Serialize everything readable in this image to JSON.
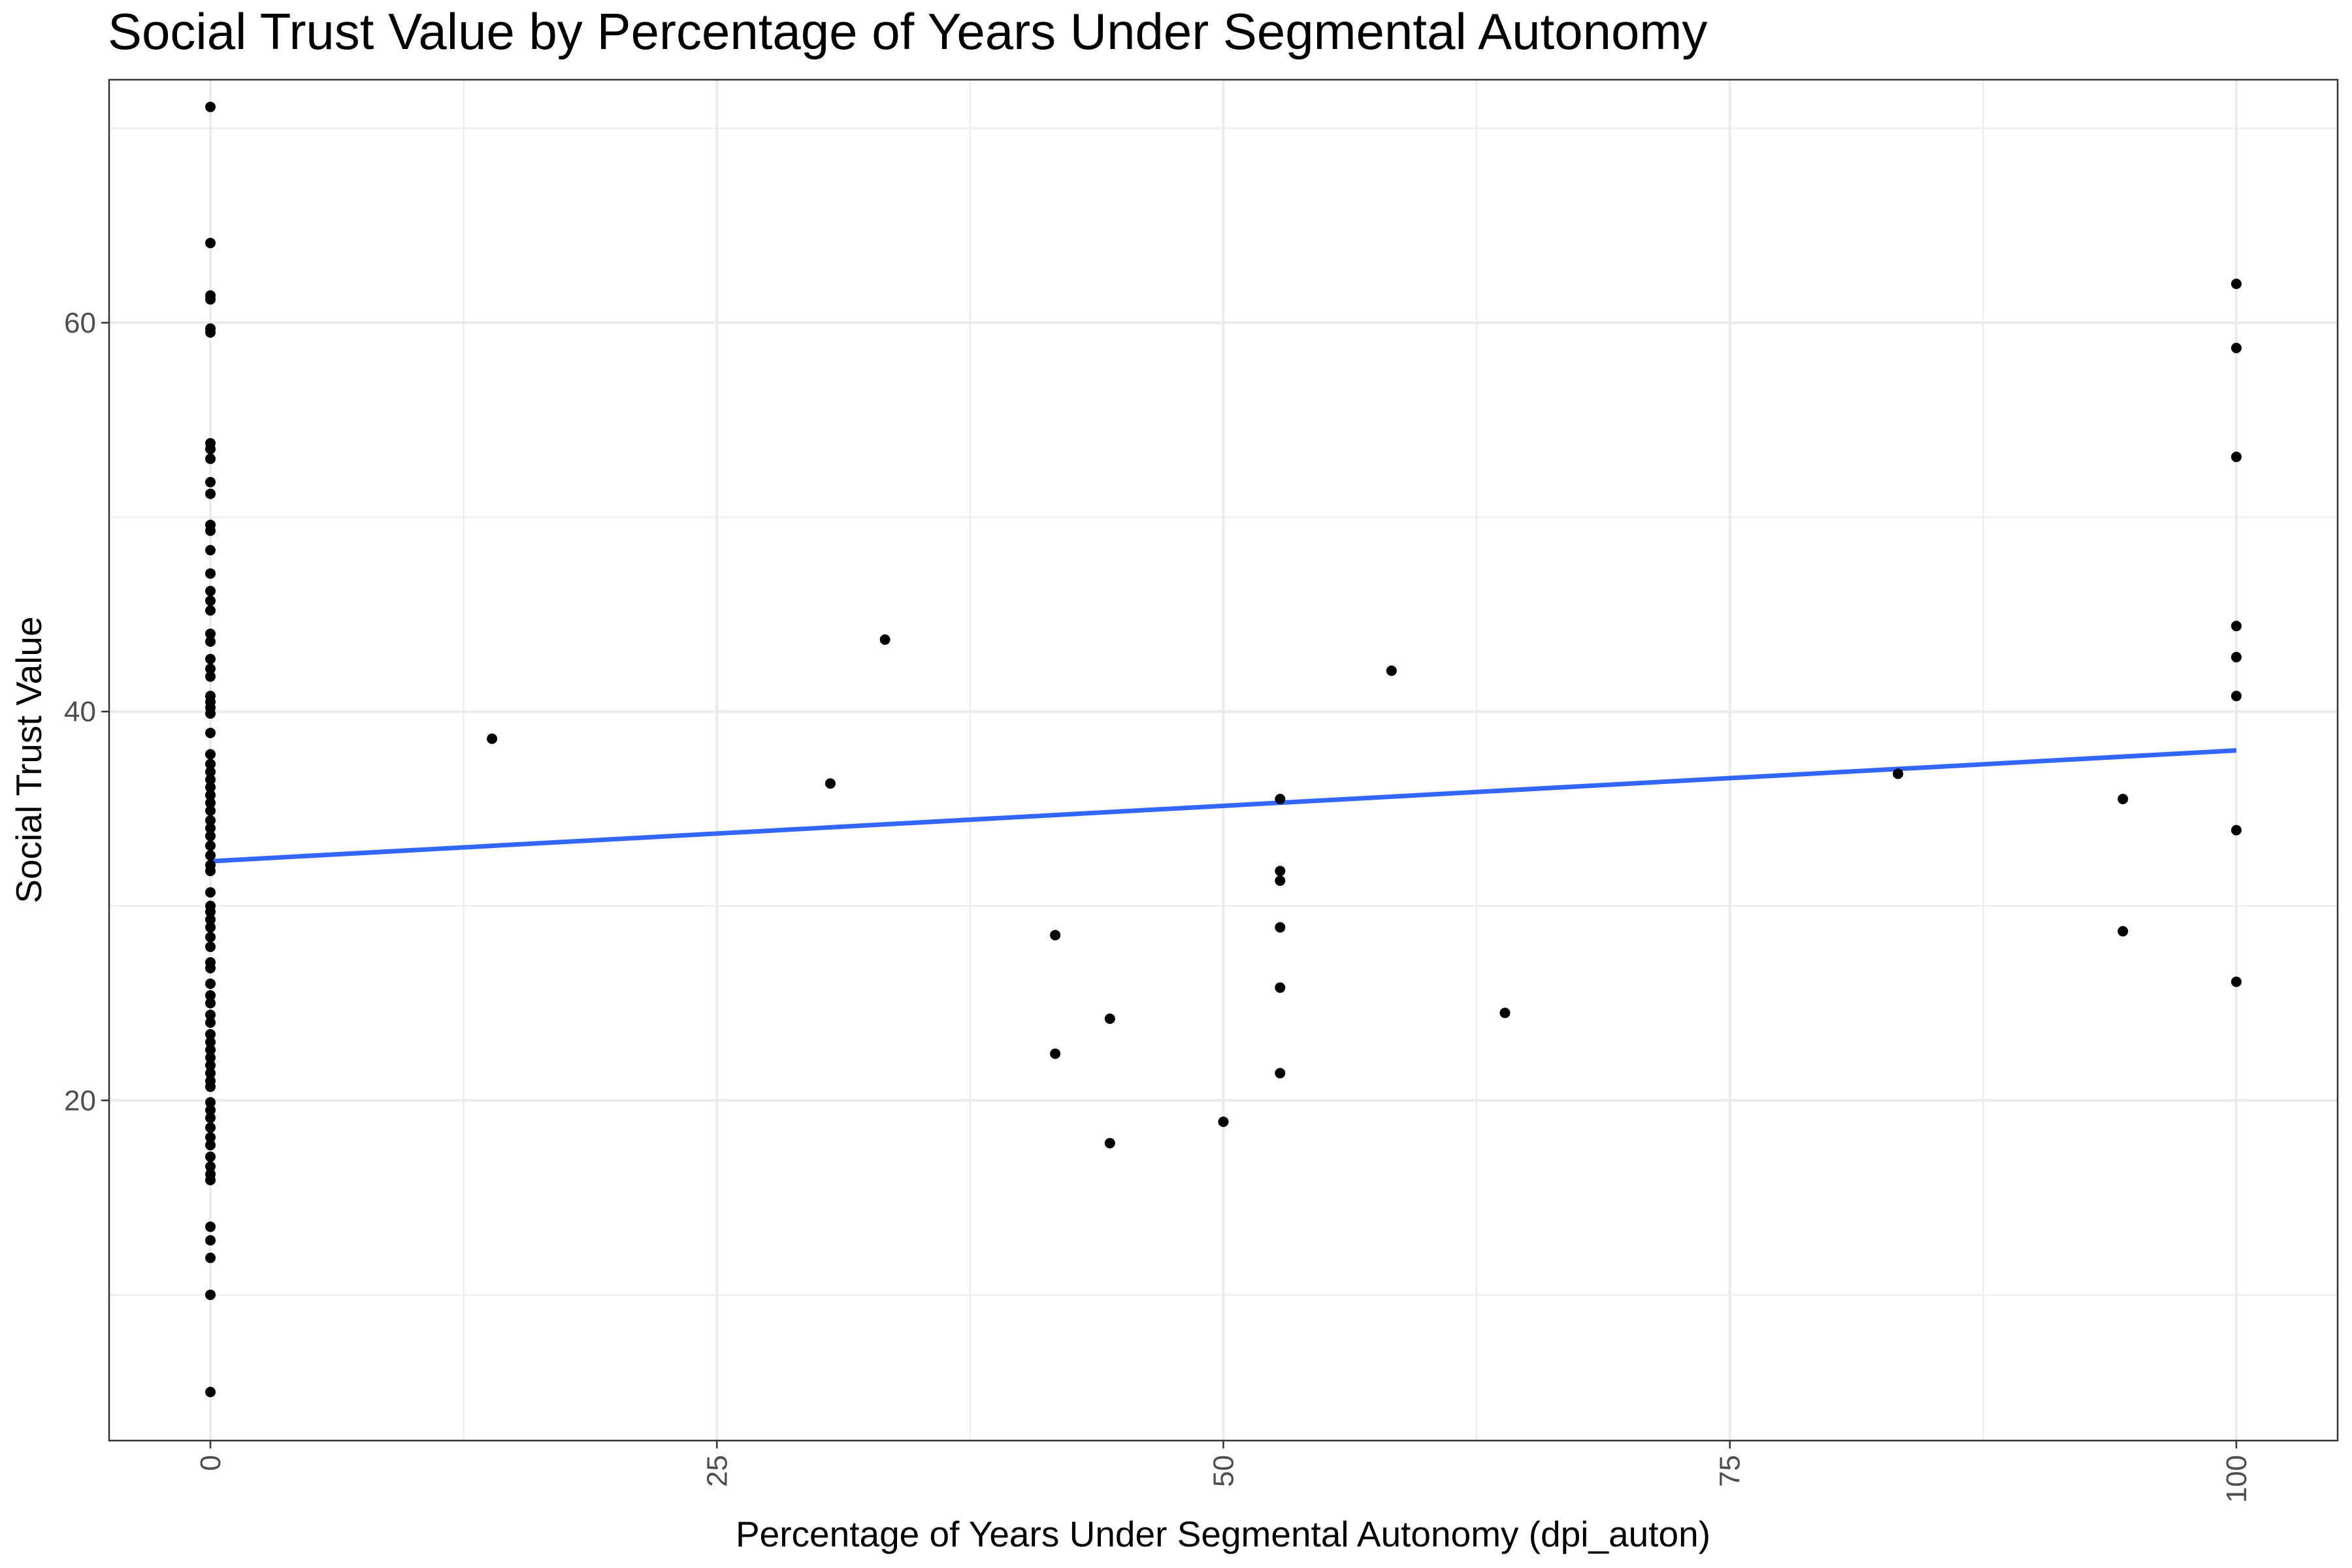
{
  "chart_data": {
    "type": "scatter",
    "title": "Social Trust Value by Percentage of Years Under Segmental Autonomy",
    "xlabel": "Percentage of Years Under Segmental Autonomy (dpi_auton)",
    "ylabel": "Social Trust Value",
    "xlim": [
      -5,
      105
    ],
    "ylim": [
      2.5,
      72.5
    ],
    "x_ticks": [
      0,
      25,
      50,
      75,
      100
    ],
    "x_tick_labels": [
      "0",
      "25",
      "50",
      "75",
      "100"
    ],
    "y_ticks": [
      20,
      40,
      60
    ],
    "y_tick_labels": [
      "20",
      "40",
      "60"
    ],
    "grid": true,
    "x_tick_rotation": "vertical",
    "points": [
      {
        "x": 0,
        "y": 71.1
      },
      {
        "x": 0,
        "y": 64.1
      },
      {
        "x": 0,
        "y": 61.4
      },
      {
        "x": 0,
        "y": 61.2
      },
      {
        "x": 0,
        "y": 59.7
      },
      {
        "x": 0,
        "y": 59.5
      },
      {
        "x": 0,
        "y": 53.8
      },
      {
        "x": 0,
        "y": 53.5
      },
      {
        "x": 0,
        "y": 53.0
      },
      {
        "x": 0,
        "y": 51.8
      },
      {
        "x": 0,
        "y": 51.2
      },
      {
        "x": 0,
        "y": 49.6
      },
      {
        "x": 0,
        "y": 49.3
      },
      {
        "x": 0,
        "y": 48.3
      },
      {
        "x": 0,
        "y": 47.1
      },
      {
        "x": 0,
        "y": 46.2
      },
      {
        "x": 0,
        "y": 45.7
      },
      {
        "x": 0,
        "y": 45.2
      },
      {
        "x": 0,
        "y": 44.0
      },
      {
        "x": 0,
        "y": 43.6
      },
      {
        "x": 0,
        "y": 42.7
      },
      {
        "x": 0,
        "y": 42.2
      },
      {
        "x": 0,
        "y": 41.8
      },
      {
        "x": 0,
        "y": 40.8
      },
      {
        "x": 0,
        "y": 40.5
      },
      {
        "x": 0,
        "y": 40.2
      },
      {
        "x": 0,
        "y": 39.9
      },
      {
        "x": 0,
        "y": 38.9
      },
      {
        "x": 0,
        "y": 37.8
      },
      {
        "x": 0,
        "y": 37.3
      },
      {
        "x": 0,
        "y": 36.9
      },
      {
        "x": 0,
        "y": 36.5
      },
      {
        "x": 0,
        "y": 36.1
      },
      {
        "x": 0,
        "y": 35.7
      },
      {
        "x": 0,
        "y": 35.3
      },
      {
        "x": 0,
        "y": 34.9
      },
      {
        "x": 0,
        "y": 34.4
      },
      {
        "x": 0,
        "y": 34.0
      },
      {
        "x": 0,
        "y": 33.6
      },
      {
        "x": 0,
        "y": 33.1
      },
      {
        "x": 0,
        "y": 32.6
      },
      {
        "x": 0,
        "y": 32.1
      },
      {
        "x": 0,
        "y": 31.8
      },
      {
        "x": 0,
        "y": 30.7
      },
      {
        "x": 0,
        "y": 30.0
      },
      {
        "x": 0,
        "y": 29.7
      },
      {
        "x": 0,
        "y": 29.3
      },
      {
        "x": 0,
        "y": 28.9
      },
      {
        "x": 0,
        "y": 28.4
      },
      {
        "x": 0,
        "y": 27.9
      },
      {
        "x": 0,
        "y": 27.1
      },
      {
        "x": 0,
        "y": 26.8
      },
      {
        "x": 0,
        "y": 26.0
      },
      {
        "x": 0,
        "y": 25.4
      },
      {
        "x": 0,
        "y": 25.0
      },
      {
        "x": 0,
        "y": 24.4
      },
      {
        "x": 0,
        "y": 24.0
      },
      {
        "x": 0,
        "y": 23.4
      },
      {
        "x": 0,
        "y": 23.0
      },
      {
        "x": 0,
        "y": 22.6
      },
      {
        "x": 0,
        "y": 22.2
      },
      {
        "x": 0,
        "y": 21.8
      },
      {
        "x": 0,
        "y": 21.4
      },
      {
        "x": 0,
        "y": 21.0
      },
      {
        "x": 0,
        "y": 20.7
      },
      {
        "x": 0,
        "y": 19.9
      },
      {
        "x": 0,
        "y": 19.5
      },
      {
        "x": 0,
        "y": 19.1
      },
      {
        "x": 0,
        "y": 18.6
      },
      {
        "x": 0,
        "y": 18.1
      },
      {
        "x": 0,
        "y": 17.7
      },
      {
        "x": 0,
        "y": 17.1
      },
      {
        "x": 0,
        "y": 16.6
      },
      {
        "x": 0,
        "y": 16.2
      },
      {
        "x": 0,
        "y": 15.9
      },
      {
        "x": 0,
        "y": 13.5
      },
      {
        "x": 0,
        "y": 12.8
      },
      {
        "x": 0,
        "y": 11.9
      },
      {
        "x": 0,
        "y": 10.0
      },
      {
        "x": 0,
        "y": 5.0
      },
      {
        "x": 13.9,
        "y": 38.6
      },
      {
        "x": 30.6,
        "y": 36.3
      },
      {
        "x": 33.3,
        "y": 43.7
      },
      {
        "x": 41.7,
        "y": 28.5
      },
      {
        "x": 41.7,
        "y": 22.4
      },
      {
        "x": 44.4,
        "y": 24.2
      },
      {
        "x": 44.4,
        "y": 17.8
      },
      {
        "x": 50.0,
        "y": 18.9
      },
      {
        "x": 52.8,
        "y": 35.5
      },
      {
        "x": 52.8,
        "y": 31.8
      },
      {
        "x": 52.8,
        "y": 31.3
      },
      {
        "x": 52.8,
        "y": 28.9
      },
      {
        "x": 52.8,
        "y": 25.8
      },
      {
        "x": 52.8,
        "y": 21.4
      },
      {
        "x": 58.3,
        "y": 42.1
      },
      {
        "x": 63.9,
        "y": 24.5
      },
      {
        "x": 83.3,
        "y": 36.8
      },
      {
        "x": 94.4,
        "y": 35.5
      },
      {
        "x": 94.4,
        "y": 28.7
      },
      {
        "x": 100,
        "y": 62.0
      },
      {
        "x": 100,
        "y": 58.7
      },
      {
        "x": 100,
        "y": 53.1
      },
      {
        "x": 100,
        "y": 44.4
      },
      {
        "x": 100,
        "y": 42.8
      },
      {
        "x": 100,
        "y": 40.8
      },
      {
        "x": 100,
        "y": 33.9
      },
      {
        "x": 100,
        "y": 26.1
      }
    ],
    "fit_line": {
      "x": [
        0,
        100
      ],
      "y": [
        32.3,
        38.0
      ]
    },
    "colors": {
      "points": "#000000",
      "fit_line": "#3366ff",
      "grid": "#ebebeb",
      "panel_border": "#333333"
    }
  }
}
